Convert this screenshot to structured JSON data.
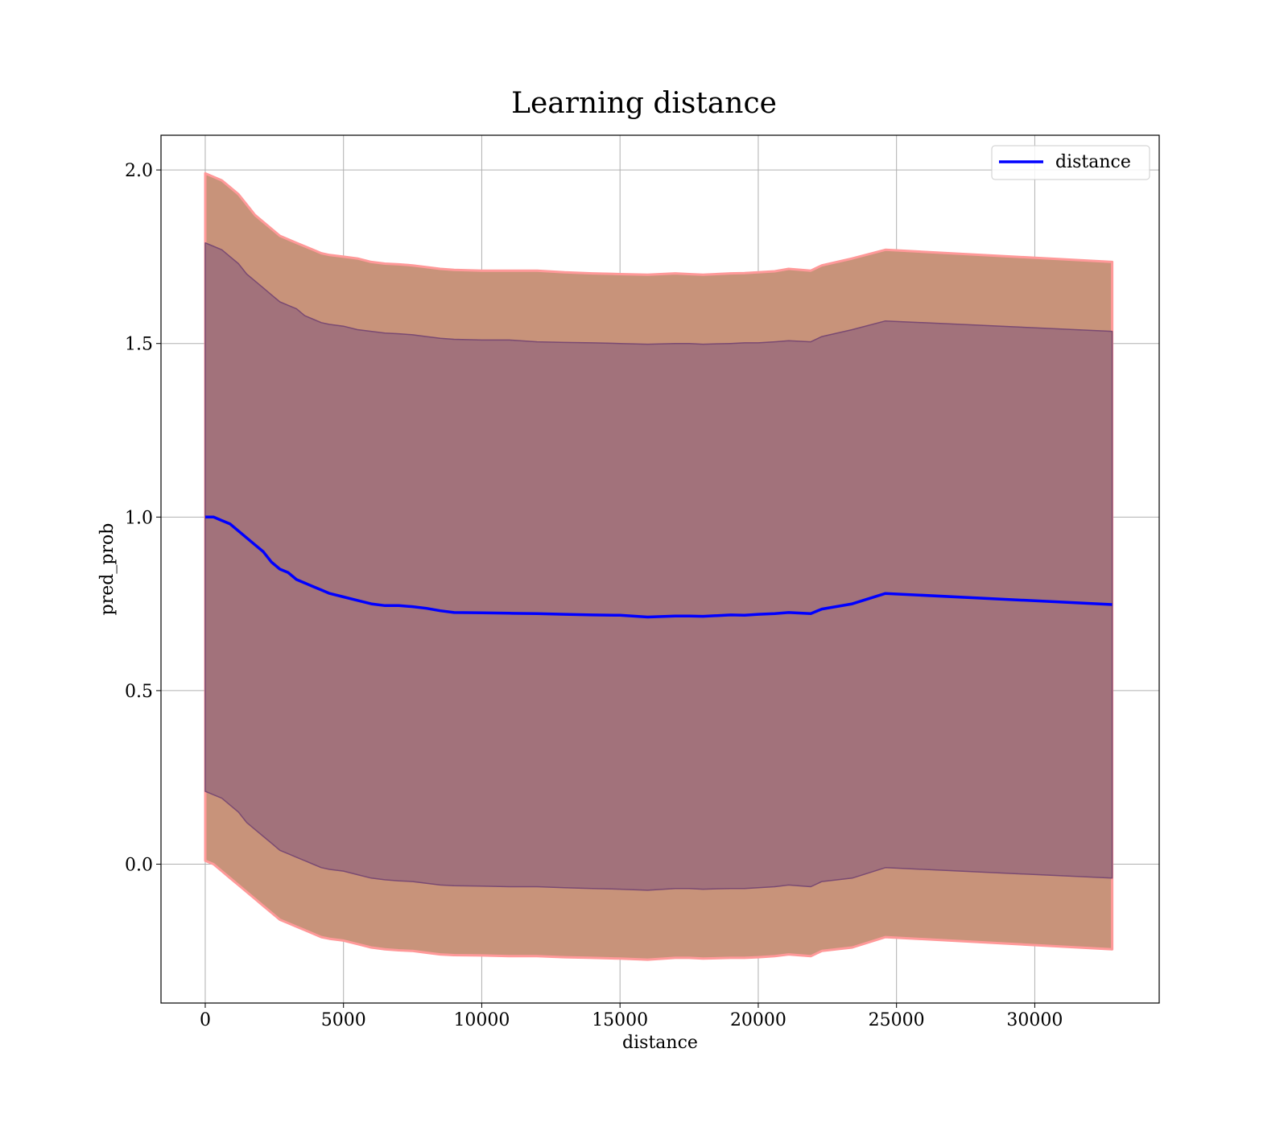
{
  "chart_data": {
    "type": "line",
    "title": "Learning distance",
    "xlabel": "distance",
    "ylabel": "pred_prob",
    "xlim": [
      -1600,
      34500
    ],
    "ylim": [
      -0.4,
      2.1
    ],
    "xticks": [
      0,
      5000,
      10000,
      15000,
      20000,
      25000,
      30000
    ],
    "xtick_labels": [
      "0",
      "5000",
      "10000",
      "15000",
      "20000",
      "25000",
      "30000"
    ],
    "yticks": [
      0.0,
      0.5,
      1.0,
      1.5,
      2.0
    ],
    "ytick_labels": [
      "0.0",
      "0.5",
      "1.0",
      "1.5",
      "2.0"
    ],
    "grid": true,
    "legend": {
      "position": "top-right",
      "entries": [
        "distance"
      ]
    },
    "colors": {
      "line": "#0000ff",
      "outer_band": "#c8937a",
      "outer_band_edge": "#ff9999",
      "inner_band": "#a2727b",
      "inner_band_edge": "#7a4a72"
    },
    "x": [
      0,
      300,
      600,
      900,
      1200,
      1500,
      1800,
      2100,
      2400,
      2700,
      3000,
      3300,
      3600,
      3900,
      4200,
      4500,
      5000,
      5500,
      6000,
      6500,
      7000,
      7500,
      8000,
      8500,
      9000,
      10000,
      11000,
      12000,
      13000,
      14000,
      15000,
      16000,
      17000,
      17500,
      18000,
      19000,
      19500,
      20000,
      20600,
      21100,
      21900,
      22300,
      23400,
      24600,
      32800
    ],
    "series": [
      {
        "name": "distance",
        "values": [
          1.0,
          1.0,
          0.99,
          0.98,
          0.96,
          0.94,
          0.92,
          0.9,
          0.87,
          0.85,
          0.84,
          0.82,
          0.81,
          0.8,
          0.79,
          0.78,
          0.77,
          0.76,
          0.75,
          0.745,
          0.745,
          0.742,
          0.737,
          0.73,
          0.725,
          0.724,
          0.723,
          0.722,
          0.72,
          0.718,
          0.717,
          0.712,
          0.715,
          0.715,
          0.714,
          0.718,
          0.717,
          0.72,
          0.722,
          0.725,
          0.722,
          0.735,
          0.75,
          0.78,
          0.748
        ]
      }
    ],
    "bands": [
      {
        "role": "outer",
        "upper": [
          1.99,
          1.98,
          1.97,
          1.95,
          1.93,
          1.9,
          1.87,
          1.85,
          1.83,
          1.81,
          1.8,
          1.79,
          1.78,
          1.77,
          1.76,
          1.755,
          1.75,
          1.745,
          1.735,
          1.73,
          1.728,
          1.725,
          1.72,
          1.715,
          1.712,
          1.71,
          1.71,
          1.71,
          1.705,
          1.702,
          1.7,
          1.698,
          1.702,
          1.7,
          1.698,
          1.702,
          1.703,
          1.705,
          1.708,
          1.715,
          1.71,
          1.725,
          1.745,
          1.77,
          1.735
        ],
        "lower": [
          0.01,
          0.0,
          -0.02,
          -0.04,
          -0.06,
          -0.08,
          -0.1,
          -0.12,
          -0.14,
          -0.16,
          -0.17,
          -0.18,
          -0.19,
          -0.2,
          -0.21,
          -0.215,
          -0.22,
          -0.23,
          -0.24,
          -0.245,
          -0.248,
          -0.25,
          -0.255,
          -0.26,
          -0.262,
          -0.263,
          -0.265,
          -0.265,
          -0.268,
          -0.27,
          -0.272,
          -0.275,
          -0.27,
          -0.27,
          -0.272,
          -0.27,
          -0.27,
          -0.268,
          -0.265,
          -0.26,
          -0.265,
          -0.25,
          -0.24,
          -0.21,
          -0.245
        ]
      },
      {
        "role": "inner",
        "upper": [
          1.79,
          1.78,
          1.77,
          1.75,
          1.73,
          1.7,
          1.68,
          1.66,
          1.64,
          1.62,
          1.61,
          1.6,
          1.58,
          1.57,
          1.56,
          1.555,
          1.55,
          1.54,
          1.535,
          1.53,
          1.528,
          1.525,
          1.52,
          1.515,
          1.512,
          1.51,
          1.51,
          1.505,
          1.503,
          1.502,
          1.5,
          1.498,
          1.5,
          1.5,
          1.498,
          1.5,
          1.502,
          1.502,
          1.505,
          1.508,
          1.505,
          1.52,
          1.54,
          1.565,
          1.535
        ],
        "lower": [
          0.21,
          0.2,
          0.19,
          0.17,
          0.15,
          0.12,
          0.1,
          0.08,
          0.06,
          0.04,
          0.03,
          0.02,
          0.01,
          0.0,
          -0.01,
          -0.015,
          -0.02,
          -0.03,
          -0.04,
          -0.045,
          -0.048,
          -0.05,
          -0.055,
          -0.06,
          -0.062,
          -0.063,
          -0.065,
          -0.065,
          -0.068,
          -0.07,
          -0.072,
          -0.075,
          -0.07,
          -0.07,
          -0.072,
          -0.07,
          -0.07,
          -0.068,
          -0.065,
          -0.06,
          -0.065,
          -0.05,
          -0.04,
          -0.01,
          -0.04
        ]
      }
    ]
  }
}
